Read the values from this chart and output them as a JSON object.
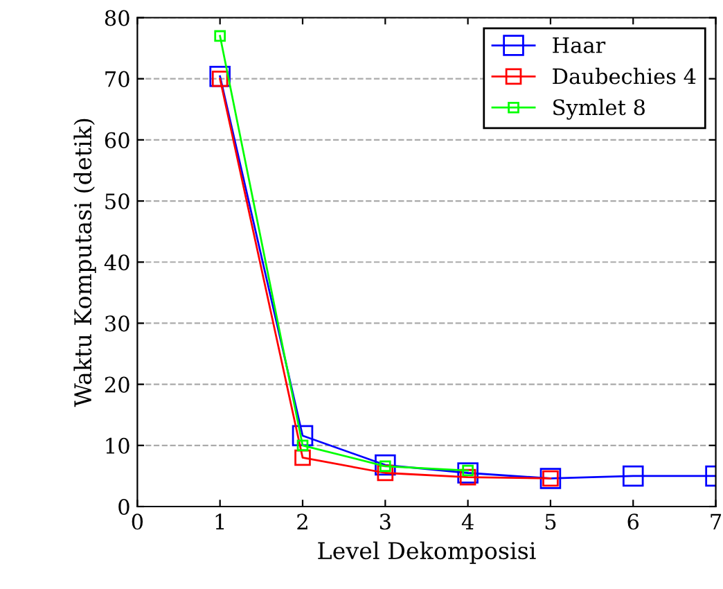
{
  "chart_data": {
    "type": "line",
    "xlabel": "Level Dekomposisi",
    "ylabel": "Waktu Komputasi (detik)",
    "xlim": [
      0,
      7
    ],
    "ylim": [
      0,
      80
    ],
    "xticks": [
      0,
      1,
      2,
      3,
      4,
      5,
      6,
      7
    ],
    "yticks": [
      0,
      10,
      20,
      30,
      40,
      50,
      60,
      70,
      80
    ],
    "grid": "y",
    "legend": "top right",
    "marker": "square",
    "series": [
      {
        "name": "Haar",
        "color": "#0000ff",
        "x": [
          1,
          2,
          3,
          4,
          5,
          6,
          7
        ],
        "values": [
          70.4,
          11.6,
          6.8,
          5.5,
          4.6,
          5.0,
          5.0
        ]
      },
      {
        "name": "Daubechies 4",
        "color": "#ff0000",
        "x": [
          1,
          2,
          3,
          4,
          5
        ],
        "values": [
          70,
          8,
          5.5,
          4.8,
          4.6
        ]
      },
      {
        "name": "Symlet 8",
        "color": "#00ff00",
        "x": [
          1,
          2,
          3,
          4
        ],
        "values": [
          77,
          10,
          6.6,
          5.9
        ]
      }
    ]
  }
}
